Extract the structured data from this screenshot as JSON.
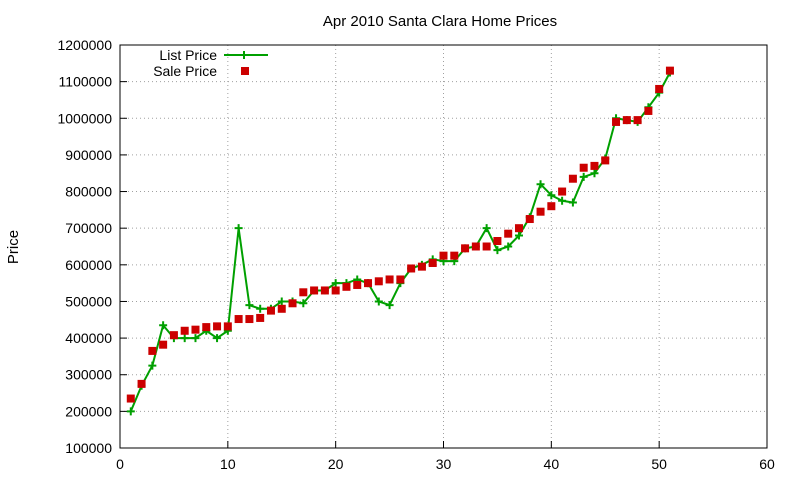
{
  "chart_data": {
    "type": "line",
    "title": "Apr 2010 Santa Clara Home Prices",
    "xlabel": "",
    "ylabel": "Price",
    "xlim": [
      0,
      60
    ],
    "ylim": [
      100000,
      1200000
    ],
    "xticks": [
      0,
      10,
      20,
      30,
      40,
      50,
      60
    ],
    "yticks": [
      100000,
      200000,
      300000,
      400000,
      500000,
      600000,
      700000,
      800000,
      900000,
      1000000,
      1100000,
      1200000
    ],
    "grid": true,
    "legend_position": "top-left",
    "series": [
      {
        "name": "List Price",
        "color": "#00a000",
        "marker": "plus",
        "style": "line-points",
        "x": [
          1,
          2,
          3,
          4,
          5,
          6,
          7,
          8,
          9,
          10,
          11,
          12,
          13,
          14,
          15,
          16,
          17,
          18,
          19,
          20,
          21,
          22,
          23,
          24,
          25,
          26,
          27,
          28,
          29,
          30,
          31,
          32,
          33,
          34,
          35,
          36,
          37,
          38,
          39,
          40,
          41,
          42,
          43,
          44,
          45,
          46,
          47,
          48,
          49,
          50,
          51
        ],
        "values": [
          200000,
          270000,
          325000,
          435000,
          400000,
          400000,
          400000,
          420000,
          400000,
          420000,
          700000,
          490000,
          480000,
          480000,
          500000,
          500000,
          495000,
          530000,
          530000,
          550000,
          550000,
          560000,
          550000,
          500000,
          490000,
          550000,
          590000,
          600000,
          615000,
          610000,
          610000,
          645000,
          650000,
          700000,
          640000,
          650000,
          680000,
          730000,
          820000,
          790000,
          775000,
          770000,
          840000,
          850000,
          890000,
          1000000,
          995000,
          990000,
          1030000,
          1070000,
          1125000
        ]
      },
      {
        "name": "Sale Price",
        "color": "#cc0000",
        "marker": "square",
        "style": "points",
        "x": [
          1,
          2,
          3,
          4,
          5,
          6,
          7,
          8,
          9,
          10,
          11,
          12,
          13,
          14,
          15,
          16,
          17,
          18,
          19,
          20,
          21,
          22,
          23,
          24,
          25,
          26,
          27,
          28,
          29,
          30,
          31,
          32,
          33,
          34,
          35,
          36,
          37,
          38,
          39,
          40,
          41,
          42,
          43,
          44,
          45,
          46,
          47,
          48,
          49,
          50,
          51
        ],
        "values": [
          235000,
          275000,
          365000,
          382000,
          408000,
          420000,
          423000,
          430000,
          432000,
          432000,
          452000,
          452000,
          455000,
          475000,
          480000,
          495000,
          525000,
          530000,
          530000,
          530000,
          540000,
          545000,
          550000,
          555000,
          560000,
          560000,
          590000,
          595000,
          605000,
          625000,
          625000,
          645000,
          650000,
          650000,
          665000,
          685000,
          700000,
          725000,
          745000,
          760000,
          800000,
          835000,
          865000,
          870000,
          885000,
          990000,
          995000,
          995000,
          1020000,
          1080000,
          1130000
        ]
      }
    ]
  }
}
